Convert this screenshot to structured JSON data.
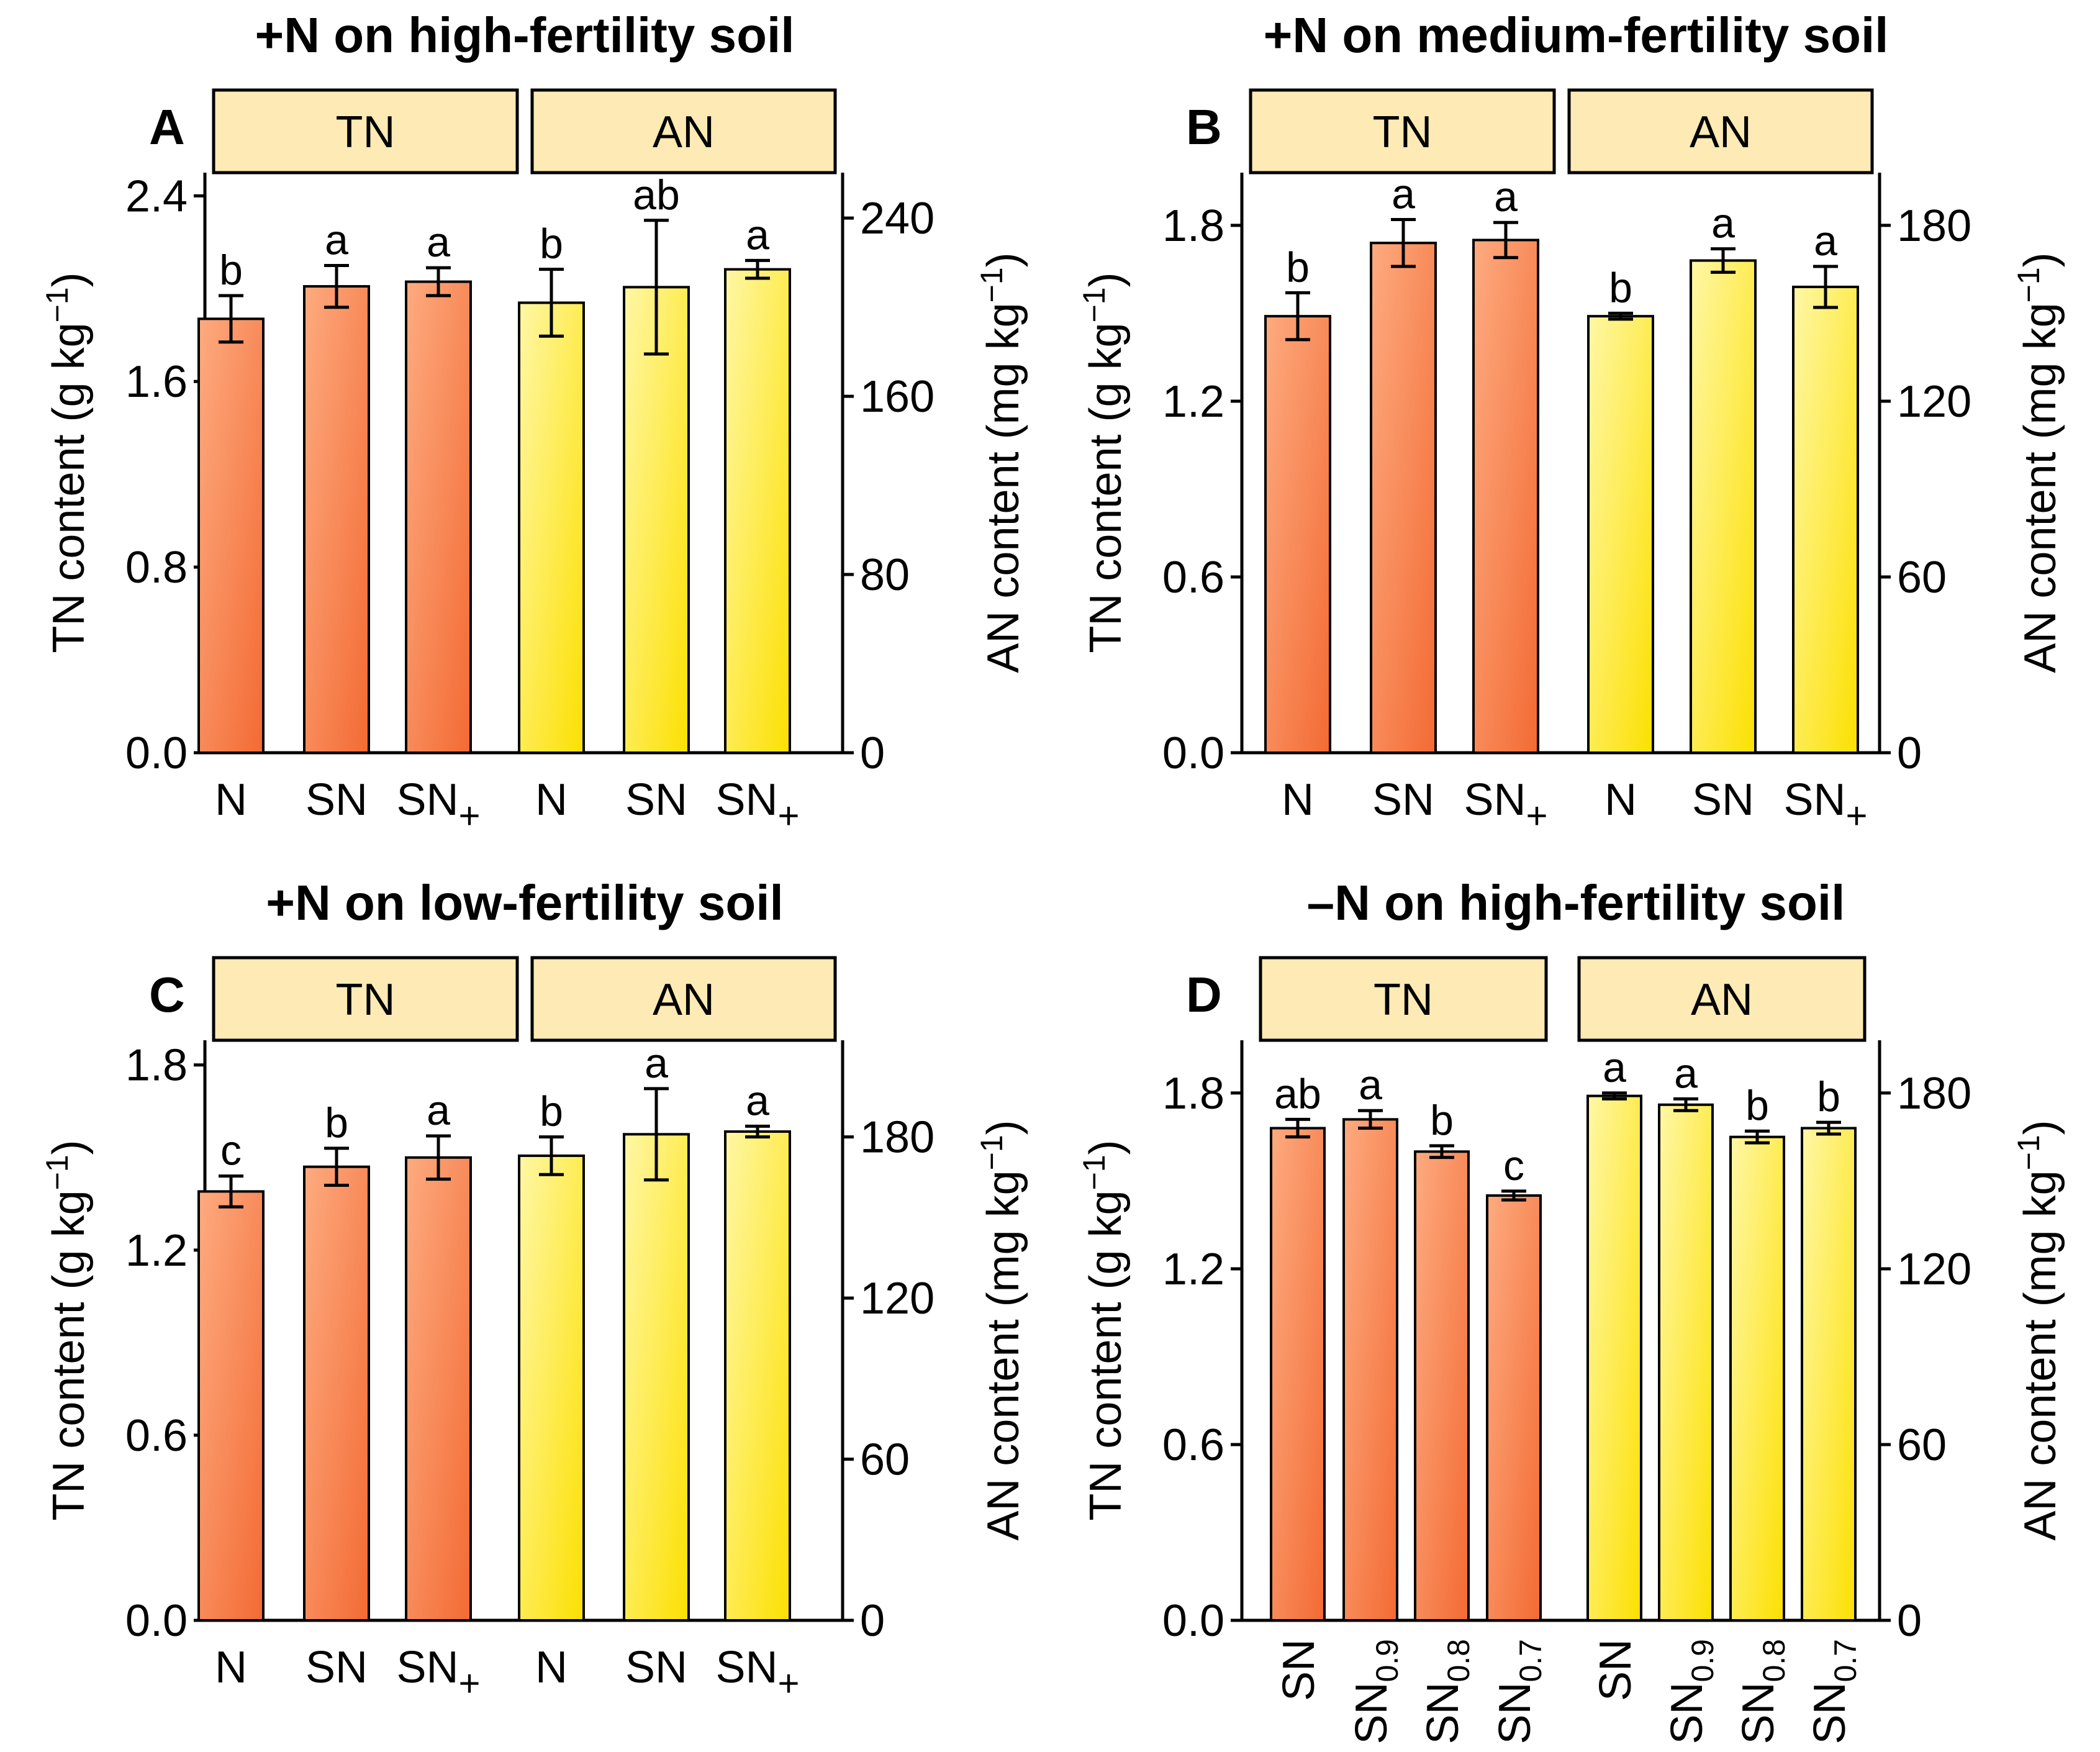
{
  "colors": {
    "tn_fill_light": "#fdab80",
    "tn_fill_dark": "#f36a33",
    "an_fill_light": "#fff7a6",
    "an_fill_dark": "#fce000",
    "strip_fill": "#fdeab4",
    "axis": "#000000"
  },
  "chart_data": [
    {
      "panel": "A",
      "type": "bar",
      "title": "+N on high-fertility soil",
      "facets": [
        "TN",
        "AN"
      ],
      "ylabel_left_text": "TN content (g kg",
      "ylabel_left_sup": "−1",
      "ylabel_left_close": ")",
      "ylabel_right_text": "AN content (mg kg",
      "ylabel_right_sup": "−1",
      "ylabel_right_close": ")",
      "ylim_left": [
        0,
        2.5
      ],
      "ylim_right": [
        0,
        260.4
      ],
      "yticks_left": [
        "0.0",
        "0.8",
        "1.6",
        "2.4"
      ],
      "yticks_right": [
        "0",
        "80",
        "160",
        "240"
      ],
      "tn": {
        "categories": [
          {
            "base": "N",
            "sub": ""
          },
          {
            "base": "SN",
            "sub": ""
          },
          {
            "base": "SN",
            "sub": "+"
          }
        ],
        "values": [
          1.87,
          2.01,
          2.03
        ],
        "errors": [
          0.1,
          0.09,
          0.06
        ],
        "letters": [
          "b",
          "a",
          "a"
        ]
      },
      "an": {
        "categories": [
          {
            "base": "N",
            "sub": ""
          },
          {
            "base": "SN",
            "sub": ""
          },
          {
            "base": "SN",
            "sub": "+"
          }
        ],
        "values": [
          202,
          209,
          217
        ],
        "errors": [
          15,
          30,
          4
        ],
        "letters": [
          "b",
          "ab",
          "a"
        ]
      }
    },
    {
      "panel": "B",
      "type": "bar",
      "title": "+N on medium-fertility soil",
      "facets": [
        "TN",
        "AN"
      ],
      "ylabel_left_text": "TN content (g kg",
      "ylabel_left_sup": "−1",
      "ylabel_left_close": ")",
      "ylabel_right_text": "AN content (mg kg",
      "ylabel_right_sup": "−1",
      "ylabel_right_close": ")",
      "ylim_left": [
        0,
        1.98
      ],
      "ylim_right": [
        0,
        198
      ],
      "yticks_left": [
        "0.0",
        "0.6",
        "1.2",
        "1.8"
      ],
      "yticks_right": [
        "0",
        "60",
        "120",
        "180"
      ],
      "tn": {
        "categories": [
          {
            "base": "N",
            "sub": ""
          },
          {
            "base": "SN",
            "sub": ""
          },
          {
            "base": "SN",
            "sub": "+"
          }
        ],
        "values": [
          1.49,
          1.74,
          1.75
        ],
        "errors": [
          0.08,
          0.08,
          0.06
        ],
        "letters": [
          "b",
          "a",
          "a"
        ]
      },
      "an": {
        "categories": [
          {
            "base": "N",
            "sub": ""
          },
          {
            "base": "SN",
            "sub": ""
          },
          {
            "base": "SN",
            "sub": "+"
          }
        ],
        "values": [
          149,
          168,
          159
        ],
        "errors": [
          1,
          4,
          7
        ],
        "letters": [
          "b",
          "a",
          "a"
        ]
      }
    },
    {
      "panel": "C",
      "type": "bar",
      "title": "+N on low-fertility soil",
      "facets": [
        "TN",
        "AN"
      ],
      "ylabel_left_text": "TN content (g kg",
      "ylabel_left_sup": "−1",
      "ylabel_left_close": ")",
      "ylabel_right_text": "AN content (mg kg",
      "ylabel_right_sup": "−1",
      "ylabel_right_close": ")",
      "ylim_left": [
        0,
        1.88
      ],
      "ylim_right": [
        0,
        216
      ],
      "yticks_left": [
        "0.0",
        "0.6",
        "1.2",
        "1.8"
      ],
      "yticks_right": [
        "0",
        "60",
        "120",
        "180"
      ],
      "tn": {
        "categories": [
          {
            "base": "N",
            "sub": ""
          },
          {
            "base": "SN",
            "sub": ""
          },
          {
            "base": "SN",
            "sub": "+"
          }
        ],
        "values": [
          1.39,
          1.47,
          1.5
        ],
        "errors": [
          0.05,
          0.06,
          0.07
        ],
        "letters": [
          "c",
          "b",
          "a"
        ]
      },
      "an": {
        "categories": [
          {
            "base": "N",
            "sub": ""
          },
          {
            "base": "SN",
            "sub": ""
          },
          {
            "base": "SN",
            "sub": "+"
          }
        ],
        "values": [
          173,
          181,
          182
        ],
        "errors": [
          7,
          17,
          2
        ],
        "letters": [
          "b",
          "a",
          "a"
        ]
      }
    },
    {
      "panel": "D",
      "type": "bar",
      "title": "–N on high-fertility soil",
      "facets": [
        "TN",
        "AN"
      ],
      "ylabel_left_text": "TN content (g kg",
      "ylabel_left_sup": "−1",
      "ylabel_left_close": ")",
      "ylabel_right_text": "AN content (mg kg",
      "ylabel_right_sup": "−1",
      "ylabel_right_close": ")",
      "ylim_left": [
        0,
        1.98
      ],
      "ylim_right": [
        0,
        198
      ],
      "yticks_left": [
        "0.0",
        "0.6",
        "1.2",
        "1.8"
      ],
      "yticks_right": [
        "0",
        "60",
        "120",
        "180"
      ],
      "tn": {
        "categories": [
          {
            "base": "SN",
            "sub": ""
          },
          {
            "base": "SN",
            "sub": "0.9"
          },
          {
            "base": "SN",
            "sub": "0.8"
          },
          {
            "base": "SN",
            "sub": "0.7"
          }
        ],
        "values": [
          1.68,
          1.71,
          1.6,
          1.45
        ],
        "errors": [
          0.03,
          0.03,
          0.02,
          0.015
        ],
        "letters": [
          "ab",
          "a",
          "b",
          "c"
        ]
      },
      "an": {
        "categories": [
          {
            "base": "SN",
            "sub": ""
          },
          {
            "base": "SN",
            "sub": "0.9"
          },
          {
            "base": "SN",
            "sub": "0.8"
          },
          {
            "base": "SN",
            "sub": "0.7"
          }
        ],
        "values": [
          179,
          176,
          165,
          168
        ],
        "errors": [
          1,
          2,
          2,
          2
        ],
        "letters": [
          "a",
          "a",
          "b",
          "b"
        ]
      }
    }
  ]
}
